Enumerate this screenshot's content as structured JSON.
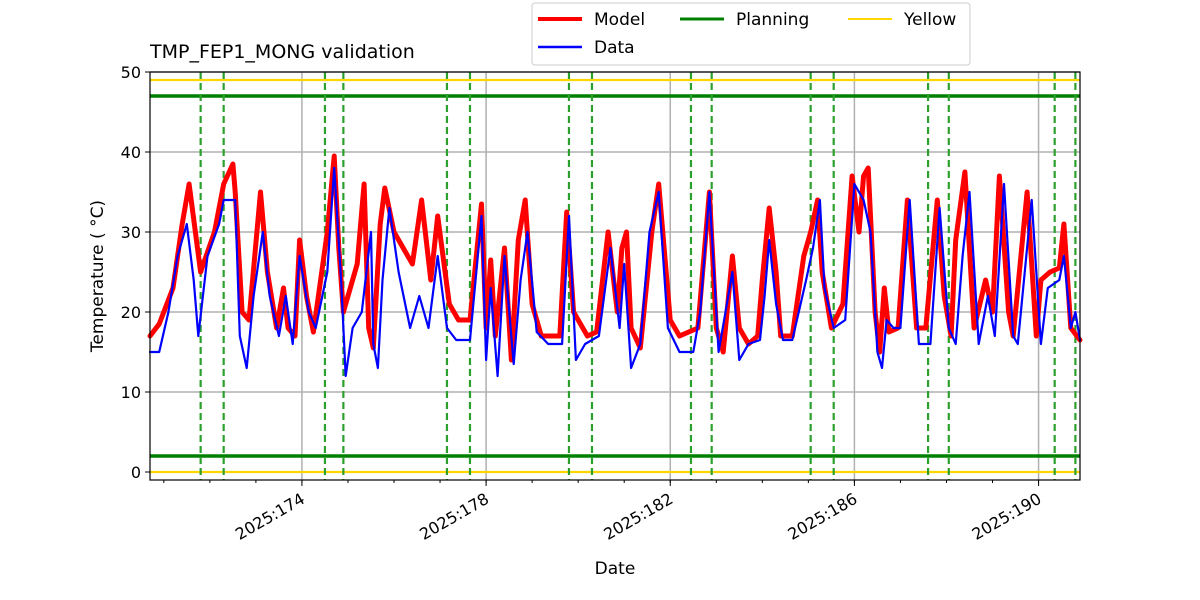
{
  "chart_data": {
    "type": "line",
    "title": "TMP_FEP1_MONG validation",
    "xlabel": "Date",
    "ylabel": "Temperature ($^\\circ$C)",
    "ylabel_display": "Temperature ( °C)",
    "xlim": [
      170.7,
      190.9
    ],
    "ylim": [
      -1,
      50
    ],
    "x_ticks": [
      {
        "value": 174,
        "label": "2025:174"
      },
      {
        "value": 178,
        "label": "2025:178"
      },
      {
        "value": 182,
        "label": "2025:182"
      },
      {
        "value": 186,
        "label": "2025:186"
      },
      {
        "value": 190,
        "label": "2025:190"
      }
    ],
    "y_ticks": [
      0,
      10,
      20,
      30,
      40,
      50
    ],
    "grid": true,
    "legend_placement": "top-center, above plot",
    "legend": [
      {
        "name": "Model",
        "color": "#ff0000"
      },
      {
        "name": "Data",
        "color": "#0000ff"
      },
      {
        "name": "Planning",
        "color": "#008000"
      },
      {
        "name": "Yellow",
        "color": "#ffd700"
      }
    ],
    "limits": [
      {
        "name": "Planning",
        "value": 47,
        "color": "#008000"
      },
      {
        "name": "Planning",
        "value": 2,
        "color": "#008000"
      },
      {
        "name": "Yellow",
        "value": 49,
        "color": "#ffd700"
      },
      {
        "name": "Yellow",
        "value": 0,
        "color": "#ffd700"
      }
    ],
    "vertical_markers": [
      171.8,
      172.3,
      174.5,
      174.9,
      177.15,
      177.65,
      179.8,
      180.3,
      182.45,
      182.9,
      185.05,
      185.55,
      187.6,
      188.05,
      190.35,
      190.8
    ],
    "vertical_marker_color": "#2ca02c",
    "series": [
      {
        "name": "Model",
        "color": "#ff0000",
        "points": [
          [
            170.7,
            17
          ],
          [
            170.9,
            18.5
          ],
          [
            171.2,
            23
          ],
          [
            171.4,
            31
          ],
          [
            171.55,
            36
          ],
          [
            171.8,
            25
          ],
          [
            172.1,
            30
          ],
          [
            172.3,
            36
          ],
          [
            172.5,
            38.5
          ],
          [
            172.55,
            35
          ],
          [
            172.7,
            20
          ],
          [
            172.85,
            19
          ],
          [
            173.1,
            35
          ],
          [
            173.25,
            25
          ],
          [
            173.45,
            18
          ],
          [
            173.6,
            23
          ],
          [
            173.7,
            18
          ],
          [
            173.85,
            17
          ],
          [
            173.95,
            29
          ],
          [
            174.1,
            22
          ],
          [
            174.25,
            17.5
          ],
          [
            174.55,
            30
          ],
          [
            174.7,
            39.5
          ],
          [
            174.8,
            28
          ],
          [
            174.9,
            20
          ],
          [
            175.2,
            26
          ],
          [
            175.35,
            36
          ],
          [
            175.45,
            18
          ],
          [
            175.55,
            15.5
          ],
          [
            175.7,
            31
          ],
          [
            175.8,
            35.5
          ],
          [
            176.0,
            30
          ],
          [
            176.4,
            26
          ],
          [
            176.6,
            34
          ],
          [
            176.8,
            24
          ],
          [
            176.95,
            32
          ],
          [
            177.2,
            21
          ],
          [
            177.4,
            19
          ],
          [
            177.65,
            19
          ],
          [
            177.9,
            33.5
          ],
          [
            178.0,
            18
          ],
          [
            178.1,
            26.5
          ],
          [
            178.2,
            17
          ],
          [
            178.4,
            28
          ],
          [
            178.55,
            14
          ],
          [
            178.7,
            29
          ],
          [
            178.85,
            34
          ],
          [
            179.0,
            21
          ],
          [
            179.2,
            17
          ],
          [
            179.6,
            17
          ],
          [
            179.75,
            32.5
          ],
          [
            179.9,
            20
          ],
          [
            180.2,
            17
          ],
          [
            180.4,
            17.5
          ],
          [
            180.65,
            30
          ],
          [
            180.85,
            20
          ],
          [
            180.95,
            28
          ],
          [
            181.05,
            30
          ],
          [
            181.15,
            18
          ],
          [
            181.35,
            15.5
          ],
          [
            181.6,
            30
          ],
          [
            181.75,
            36
          ],
          [
            182.0,
            19
          ],
          [
            182.2,
            17
          ],
          [
            182.6,
            18
          ],
          [
            182.85,
            35
          ],
          [
            183.0,
            18
          ],
          [
            183.15,
            15
          ],
          [
            183.35,
            27
          ],
          [
            183.5,
            18
          ],
          [
            183.7,
            16
          ],
          [
            183.9,
            17
          ],
          [
            184.0,
            24
          ],
          [
            184.15,
            33
          ],
          [
            184.3,
            25
          ],
          [
            184.4,
            17
          ],
          [
            184.65,
            17
          ],
          [
            184.9,
            27
          ],
          [
            185.05,
            30
          ],
          [
            185.2,
            34
          ],
          [
            185.3,
            25
          ],
          [
            185.5,
            18
          ],
          [
            185.75,
            21
          ],
          [
            185.95,
            37
          ],
          [
            186.1,
            30
          ],
          [
            186.2,
            37
          ],
          [
            186.3,
            38
          ],
          [
            186.45,
            20
          ],
          [
            186.55,
            15
          ],
          [
            186.65,
            23
          ],
          [
            186.75,
            17.5
          ],
          [
            186.95,
            18
          ],
          [
            187.15,
            34
          ],
          [
            187.35,
            18
          ],
          [
            187.55,
            18
          ],
          [
            187.8,
            34
          ],
          [
            187.95,
            22
          ],
          [
            188.1,
            17
          ],
          [
            188.2,
            29
          ],
          [
            188.4,
            37.5
          ],
          [
            188.6,
            18
          ],
          [
            188.85,
            24
          ],
          [
            189.0,
            20
          ],
          [
            189.15,
            37
          ],
          [
            189.35,
            20
          ],
          [
            189.45,
            17
          ],
          [
            189.75,
            35
          ],
          [
            189.95,
            17
          ],
          [
            190.05,
            24
          ],
          [
            190.25,
            25
          ],
          [
            190.45,
            25.5
          ],
          [
            190.55,
            31
          ],
          [
            190.7,
            18
          ],
          [
            190.9,
            16.5
          ]
        ]
      },
      {
        "name": "Data",
        "color": "#0000ff",
        "points": [
          [
            170.7,
            15
          ],
          [
            170.9,
            15
          ],
          [
            171.1,
            20
          ],
          [
            171.3,
            27
          ],
          [
            171.5,
            31
          ],
          [
            171.65,
            24
          ],
          [
            171.75,
            17
          ],
          [
            171.95,
            27
          ],
          [
            172.2,
            31
          ],
          [
            172.3,
            34
          ],
          [
            172.55,
            34
          ],
          [
            172.65,
            17
          ],
          [
            172.8,
            13
          ],
          [
            172.95,
            22
          ],
          [
            173.15,
            30
          ],
          [
            173.3,
            22
          ],
          [
            173.5,
            17
          ],
          [
            173.65,
            22
          ],
          [
            173.8,
            16
          ],
          [
            173.95,
            27
          ],
          [
            174.15,
            20
          ],
          [
            174.3,
            18
          ],
          [
            174.55,
            25
          ],
          [
            174.7,
            38
          ],
          [
            174.85,
            24
          ],
          [
            174.95,
            12
          ],
          [
            175.1,
            18
          ],
          [
            175.3,
            20
          ],
          [
            175.5,
            30
          ],
          [
            175.55,
            16
          ],
          [
            175.65,
            13
          ],
          [
            175.75,
            24
          ],
          [
            175.9,
            33
          ],
          [
            176.1,
            25
          ],
          [
            176.35,
            18
          ],
          [
            176.55,
            22
          ],
          [
            176.75,
            18
          ],
          [
            176.95,
            27
          ],
          [
            177.15,
            18
          ],
          [
            177.35,
            16.5
          ],
          [
            177.65,
            16.5
          ],
          [
            177.9,
            32
          ],
          [
            178.0,
            14
          ],
          [
            178.1,
            23
          ],
          [
            178.25,
            12
          ],
          [
            178.4,
            27
          ],
          [
            178.6,
            13.5
          ],
          [
            178.75,
            24
          ],
          [
            178.9,
            30
          ],
          [
            179.1,
            17.5
          ],
          [
            179.35,
            16
          ],
          [
            179.65,
            16
          ],
          [
            179.8,
            32
          ],
          [
            179.95,
            14
          ],
          [
            180.15,
            16
          ],
          [
            180.45,
            17
          ],
          [
            180.7,
            28
          ],
          [
            180.9,
            18
          ],
          [
            181.0,
            26
          ],
          [
            181.15,
            13
          ],
          [
            181.35,
            16
          ],
          [
            181.55,
            30
          ],
          [
            181.75,
            35
          ],
          [
            181.95,
            18
          ],
          [
            182.2,
            15
          ],
          [
            182.5,
            15
          ],
          [
            182.65,
            20
          ],
          [
            182.85,
            35
          ],
          [
            183.05,
            15
          ],
          [
            183.35,
            25
          ],
          [
            183.5,
            14
          ],
          [
            183.7,
            16
          ],
          [
            183.95,
            16.5
          ],
          [
            184.05,
            22
          ],
          [
            184.15,
            29
          ],
          [
            184.3,
            21
          ],
          [
            184.45,
            16.5
          ],
          [
            184.65,
            16.5
          ],
          [
            184.95,
            24
          ],
          [
            185.1,
            28
          ],
          [
            185.25,
            34
          ],
          [
            185.35,
            23
          ],
          [
            185.55,
            18
          ],
          [
            185.8,
            19
          ],
          [
            186.0,
            36
          ],
          [
            186.2,
            34
          ],
          [
            186.35,
            30
          ],
          [
            186.5,
            15
          ],
          [
            186.6,
            13
          ],
          [
            186.7,
            19
          ],
          [
            186.85,
            18
          ],
          [
            187.0,
            18
          ],
          [
            187.2,
            34
          ],
          [
            187.4,
            16
          ],
          [
            187.65,
            16
          ],
          [
            187.85,
            33
          ],
          [
            188.05,
            18
          ],
          [
            188.2,
            16
          ],
          [
            188.35,
            27
          ],
          [
            188.5,
            35
          ],
          [
            188.7,
            16
          ],
          [
            188.9,
            22
          ],
          [
            189.05,
            17
          ],
          [
            189.25,
            36
          ],
          [
            189.45,
            17
          ],
          [
            189.55,
            16
          ],
          [
            189.85,
            34
          ],
          [
            190.05,
            16
          ],
          [
            190.2,
            23
          ],
          [
            190.45,
            24
          ],
          [
            190.55,
            27
          ],
          [
            190.7,
            18
          ],
          [
            190.8,
            20
          ],
          [
            190.9,
            16.5
          ]
        ]
      }
    ]
  }
}
